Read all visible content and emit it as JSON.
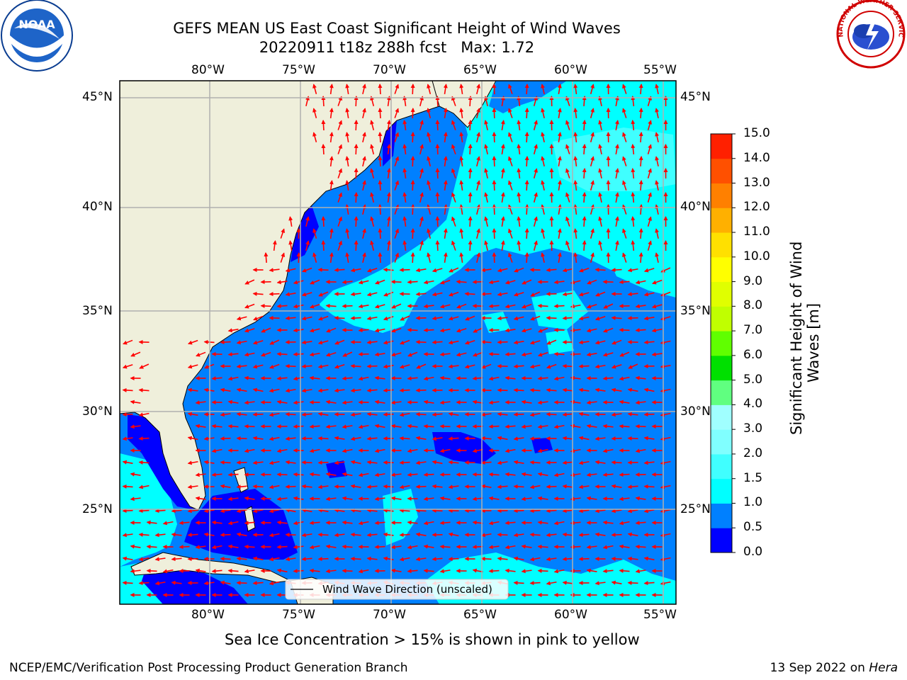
{
  "header": {
    "title_line1": "GEFS MEAN US East Coast Significant Height of Wind Waves",
    "title_line2": "20220911 t18z 288h fcst   Max: 1.72"
  },
  "logos": {
    "left": {
      "icon": "noaa-logo-icon",
      "text": "NOAA"
    },
    "right": {
      "icon": "nws-logo-icon",
      "ring_text": "NATIONAL WEATHER SERVICE"
    }
  },
  "map": {
    "lon_ticks_top": [
      "80°W",
      "75°W",
      "70°W",
      "65°W",
      "60°W",
      "55°W"
    ],
    "lon_ticks_bottom": [
      "80°W",
      "75°W",
      "70°W",
      "65°W",
      "60°W",
      "55°W"
    ],
    "lat_ticks_left": [
      "45°N",
      "40°N",
      "35°N",
      "30°N",
      "25°N"
    ],
    "lat_ticks_right": [
      "45°N",
      "40°N",
      "35°N",
      "30°N",
      "25°N"
    ],
    "extent": {
      "lon_min": -85,
      "lon_max": -54.3,
      "lat_min": 20.5,
      "lat_max": 46
    },
    "legend": "Wind Wave Direction (unscaled)",
    "colors": {
      "land": "#efefdb",
      "ocean_low": "#0000ff",
      "ocean_mid": "#0080ff",
      "ocean_high": "#00ffff",
      "arrow": "#ff0000",
      "grid": "#b0b0b0"
    }
  },
  "colorbar": {
    "label": "Significant Height of Wind\nWaves [m]",
    "ticks": [
      "0.0",
      "0.5",
      "1.0",
      "1.5",
      "2.0",
      "3.0",
      "4.0",
      "5.0",
      "6.0",
      "7.0",
      "8.0",
      "9.0",
      "10.0",
      "11.0",
      "12.0",
      "13.0",
      "14.0",
      "15.0"
    ],
    "colors": [
      "#0000ff",
      "#0080ff",
      "#00ffff",
      "#40ffff",
      "#80ffff",
      "#a0ffff",
      "#60ff80",
      "#00e000",
      "#60ff00",
      "#c0ff00",
      "#e0ff00",
      "#ffff00",
      "#ffe000",
      "#ffb000",
      "#ff8000",
      "#ff5000",
      "#ff2000"
    ]
  },
  "footer": {
    "sea_ice_note": "Sea Ice Concentration > 15% is shown in pink to yellow",
    "branch": "NCEP/EMC/Verification Post Processing Product Generation Branch",
    "date": "13 Sep 2022 on",
    "host": "Hera"
  }
}
